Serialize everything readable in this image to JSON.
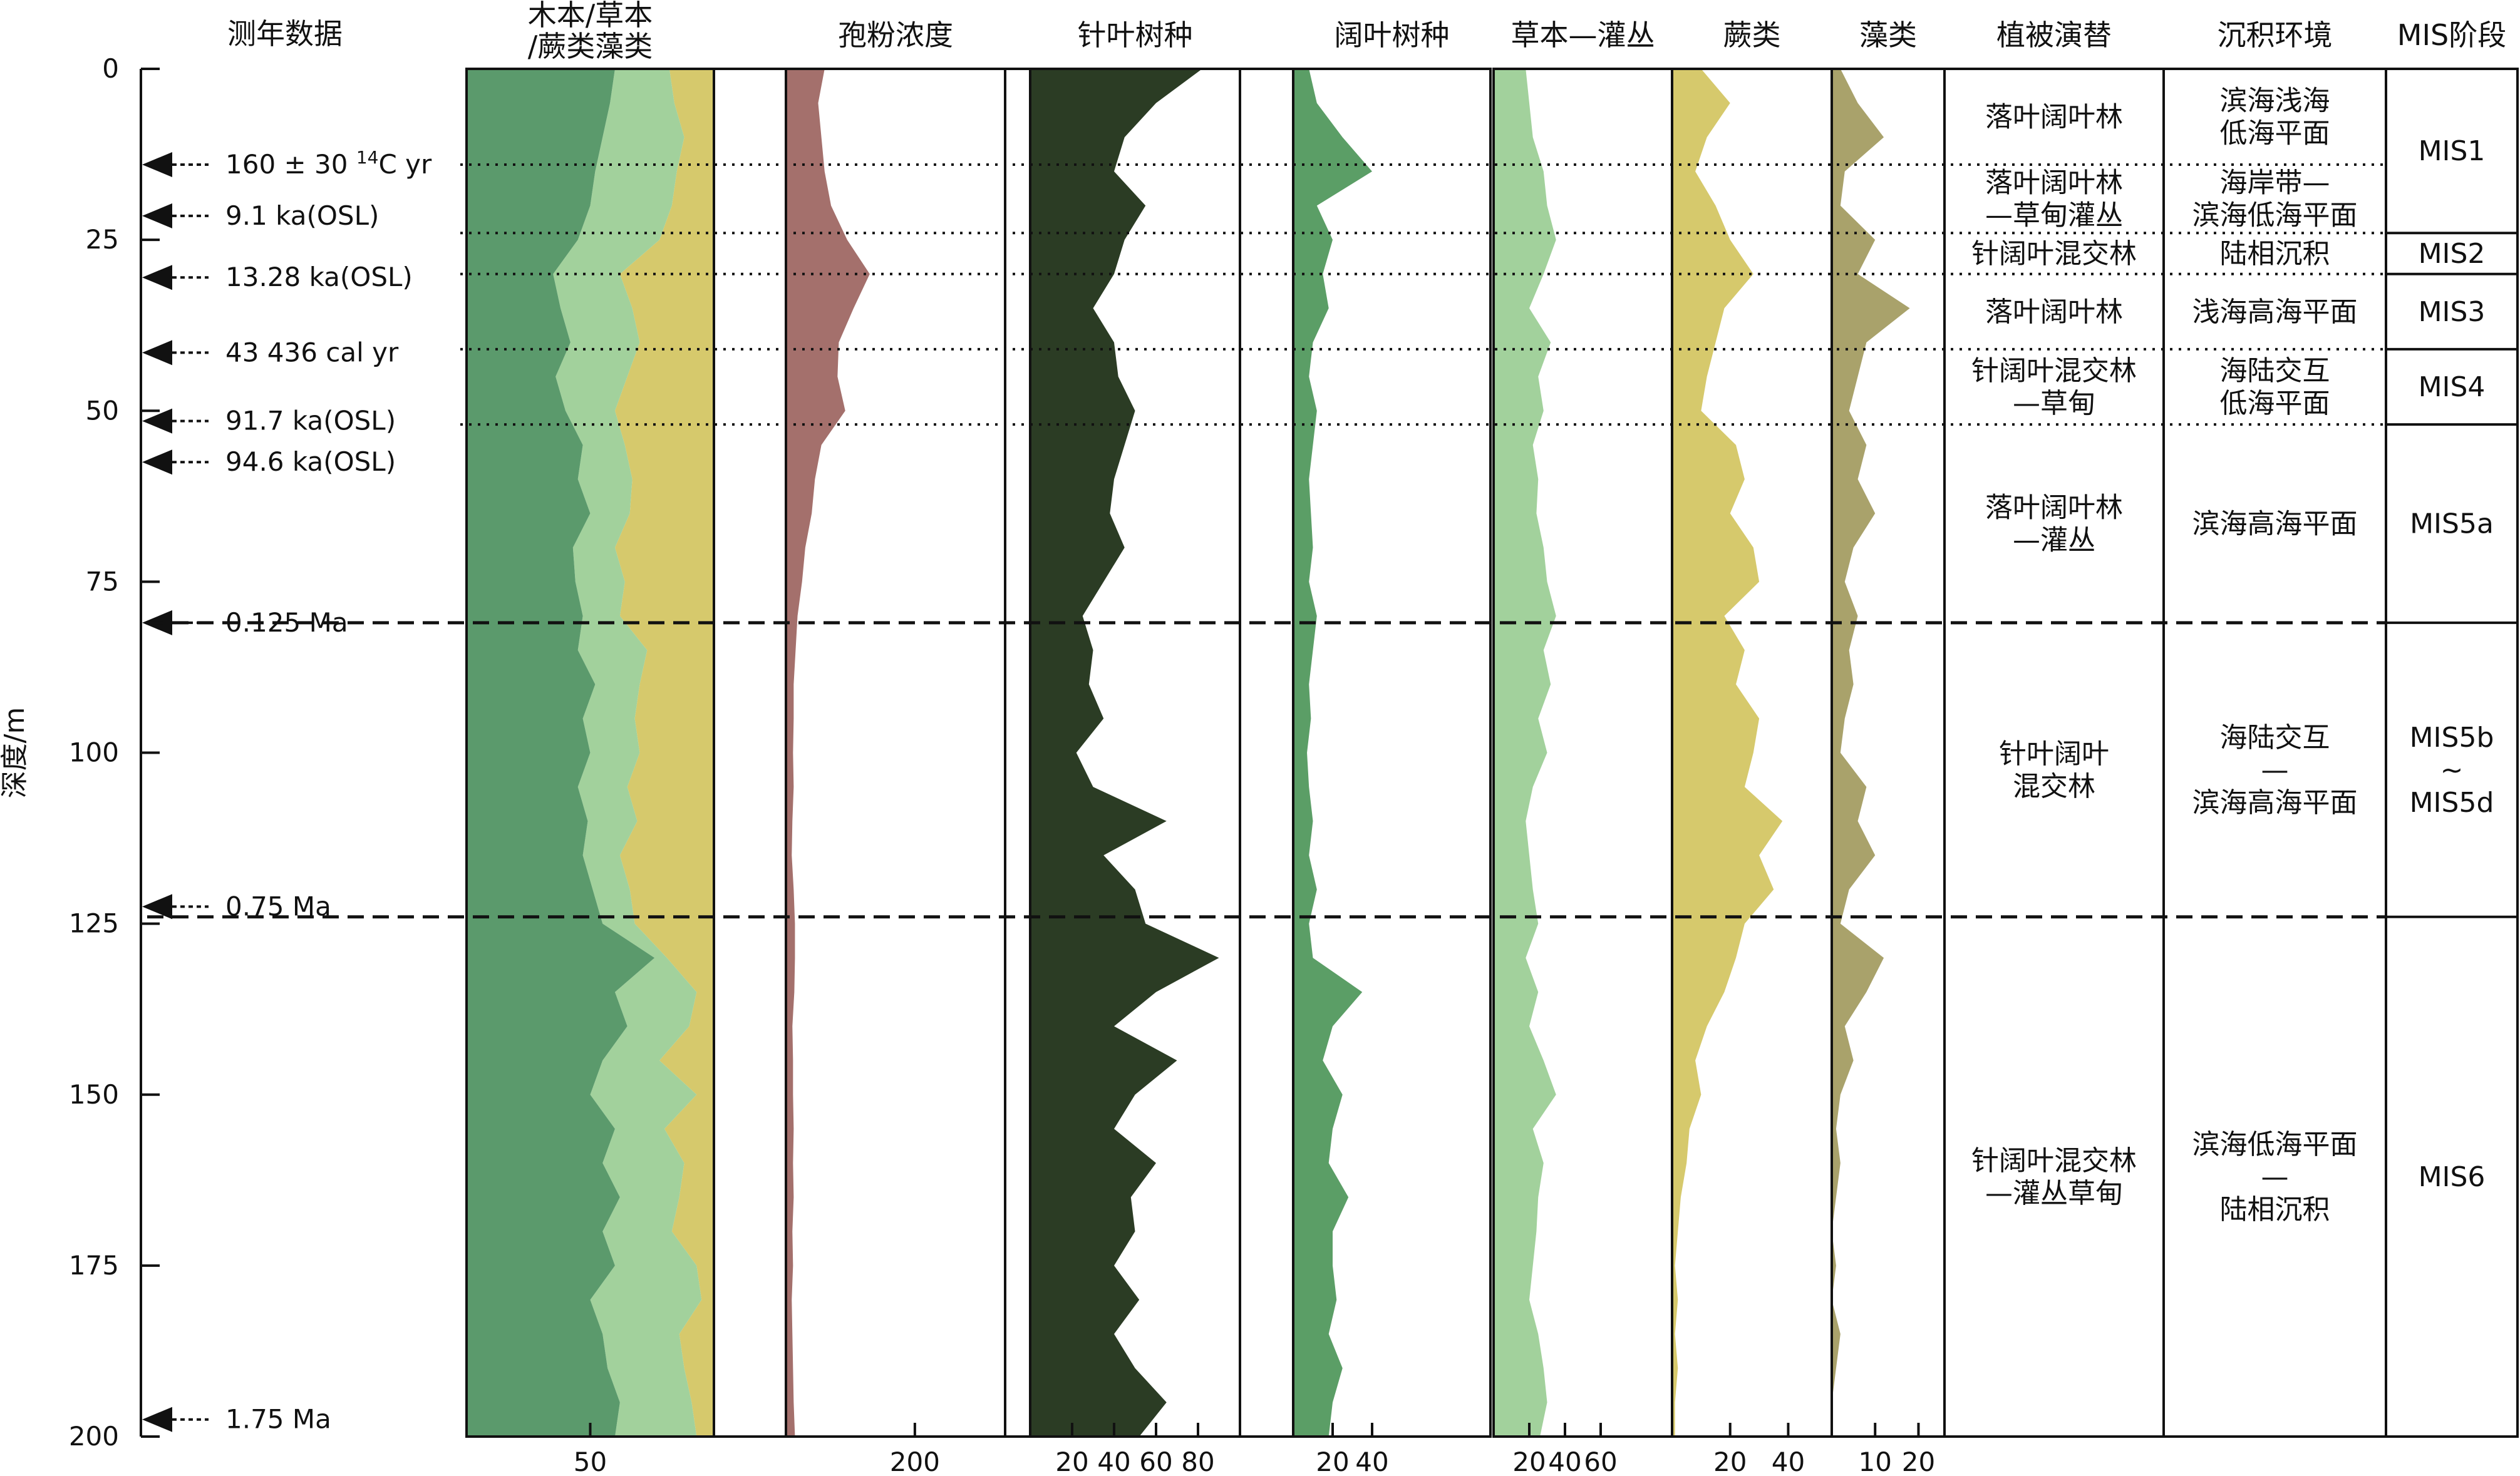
{
  "chart_data": {
    "type": "area",
    "depth_axis": {
      "label": "深度/m",
      "ticks": [
        "0",
        "25",
        "50",
        "75",
        "100",
        "125",
        "150",
        "175",
        "200"
      ],
      "range": [
        0,
        200
      ]
    },
    "dating": {
      "header": "测年数据",
      "items": [
        {
          "depth": 14,
          "label": "160 ± 30 ",
          "sup": "14",
          "suffix": "C yr"
        },
        {
          "depth": 21.5,
          "label": "9.1 ka(OSL)"
        },
        {
          "depth": 30.5,
          "label": "13.28 ka(OSL)"
        },
        {
          "depth": 41.5,
          "label": "43 436 cal yr"
        },
        {
          "depth": 51.5,
          "label": "91.7 ka(OSL)"
        },
        {
          "depth": 57.5,
          "label": "94.6 ka(OSL)"
        },
        {
          "depth": 81,
          "label": "0.125 Ma"
        },
        {
          "depth": 122.5,
          "label": "0.75 Ma"
        },
        {
          "depth": 197.5,
          "label": "1.75 Ma"
        }
      ]
    },
    "boundaries": {
      "dotted": [
        14,
        24,
        30,
        41,
        52
      ],
      "dashed": [
        81,
        124
      ]
    },
    "columns": [
      {
        "key": "composition",
        "header": "木本/草本\n/蕨类藻类",
        "ticks": [
          {
            "value": 50,
            "label": "50"
          }
        ],
        "xmax": 100
      },
      {
        "key": "pollen",
        "header": "孢粉浓度",
        "ticks": [
          {
            "value": 200,
            "label": "200"
          }
        ],
        "xmax": 340,
        "color": "#a4706c"
      },
      {
        "key": "conifer",
        "header": "针叶树种",
        "ticks": [
          {
            "value": 20,
            "label": "20"
          },
          {
            "value": 40,
            "label": "40"
          },
          {
            "value": 60,
            "label": "60"
          },
          {
            "value": 80,
            "label": "80"
          }
        ],
        "xmax": 100,
        "color": "#2b3c24"
      },
      {
        "key": "broadleaf",
        "header": "阔叶树种",
        "ticks": [
          {
            "value": 20,
            "label": "20"
          },
          {
            "value": 40,
            "label": "40"
          }
        ],
        "xmax": 100,
        "color": "#5b9e66"
      },
      {
        "key": "herb",
        "header": "草本—灌丛",
        "ticks": [
          {
            "value": 20,
            "label": "20"
          },
          {
            "value": 40,
            "label": "40"
          },
          {
            "value": 60,
            "label": "60"
          }
        ],
        "xmax": 100,
        "color": "#a2d19c"
      },
      {
        "key": "fern",
        "header": "蕨类",
        "ticks": [
          {
            "value": 20,
            "label": "20"
          },
          {
            "value": 40,
            "label": "40"
          }
        ],
        "xmax": 55,
        "color": "#d6c96c"
      },
      {
        "key": "algae",
        "header": "藻类",
        "ticks": [
          {
            "value": 10,
            "label": "10"
          },
          {
            "value": 20,
            "label": "20"
          }
        ],
        "xmax": 26,
        "color": "#a9a26b"
      }
    ],
    "composition_bands": [
      {
        "name": "木本",
        "color": "#5b9a6c"
      },
      {
        "name": "草本",
        "color": "#a2d19c"
      },
      {
        "name": "蕨类藻类",
        "color": "#d6c96c"
      }
    ],
    "series": {
      "depths": [
        0,
        5,
        10,
        15,
        20,
        25,
        30,
        35,
        40,
        45,
        50,
        55,
        60,
        65,
        70,
        75,
        80,
        85,
        90,
        95,
        100,
        105,
        110,
        115,
        120,
        125,
        130,
        135,
        140,
        145,
        150,
        155,
        160,
        165,
        170,
        175,
        180,
        185,
        190,
        195,
        200
      ],
      "woody": [
        60,
        58,
        55,
        52,
        50,
        45,
        35,
        38,
        42,
        36,
        40,
        47,
        45,
        50,
        43,
        44,
        47,
        45,
        52,
        47,
        50,
        45,
        49,
        47,
        51,
        55,
        76,
        60,
        65,
        55,
        50,
        60,
        55,
        62,
        55,
        60,
        50,
        55,
        57,
        62,
        60
      ],
      "woody_herb": [
        82,
        84,
        88,
        85,
        83,
        78,
        62,
        67,
        70,
        65,
        60,
        64,
        67,
        66,
        60,
        64,
        62,
        73,
        70,
        68,
        70,
        65,
        69,
        62,
        66,
        68,
        81,
        93,
        90,
        78,
        93,
        80,
        88,
        86,
        83,
        93,
        95,
        86,
        88,
        91,
        93
      ],
      "pollen": [
        60,
        50,
        55,
        60,
        70,
        95,
        130,
        105,
        82,
        80,
        92,
        55,
        45,
        40,
        30,
        25,
        18,
        15,
        12,
        12,
        11,
        12,
        10,
        9,
        12,
        14,
        14,
        13,
        10,
        11,
        11,
        12,
        11,
        12,
        10,
        11,
        9,
        10,
        11,
        12,
        14
      ],
      "conifer": [
        82,
        60,
        45,
        40,
        55,
        45,
        40,
        30,
        40,
        42,
        50,
        45,
        40,
        38,
        45,
        35,
        25,
        30,
        28,
        35,
        22,
        30,
        65,
        35,
        50,
        55,
        90,
        60,
        40,
        70,
        50,
        40,
        60,
        48,
        50,
        40,
        52,
        40,
        50,
        65,
        52
      ],
      "broadleaf": [
        8,
        12,
        25,
        40,
        12,
        20,
        15,
        18,
        10,
        8,
        12,
        10,
        8,
        9,
        10,
        8,
        12,
        10,
        8,
        9,
        7,
        8,
        10,
        8,
        12,
        8,
        10,
        35,
        20,
        15,
        25,
        20,
        18,
        28,
        20,
        20,
        22,
        18,
        25,
        20,
        18
      ],
      "herb": [
        18,
        20,
        22,
        28,
        30,
        35,
        28,
        20,
        32,
        25,
        28,
        22,
        25,
        24,
        28,
        30,
        35,
        28,
        32,
        25,
        30,
        22,
        18,
        20,
        22,
        25,
        18,
        25,
        20,
        28,
        35,
        22,
        28,
        25,
        24,
        22,
        20,
        25,
        28,
        30,
        26
      ],
      "fern": [
        10,
        20,
        12,
        8,
        15,
        20,
        28,
        18,
        15,
        12,
        10,
        22,
        25,
        20,
        28,
        30,
        18,
        25,
        22,
        30,
        28,
        25,
        38,
        30,
        35,
        25,
        22,
        18,
        12,
        8,
        10,
        6,
        5,
        3,
        2,
        1,
        2,
        1,
        2,
        1,
        1
      ],
      "algae": [
        2,
        6,
        12,
        3,
        2,
        10,
        6,
        18,
        8,
        6,
        4,
        8,
        6,
        10,
        5,
        3,
        6,
        4,
        5,
        3,
        2,
        8,
        6,
        10,
        4,
        2,
        12,
        8,
        3,
        5,
        2,
        1,
        2,
        1,
        0,
        1,
        0,
        2,
        1,
        0,
        0
      ]
    },
    "veg_header": "植被演替",
    "env_header": "沉积环境",
    "mis_header": "MIS阶段",
    "zones": [
      {
        "from": 0,
        "to": 14,
        "veg": [
          "落叶阔叶林"
        ],
        "env": [
          "滨海浅海",
          "低海平面"
        ]
      },
      {
        "from": 14,
        "to": 24,
        "veg": [
          "落叶阔叶林",
          "—草甸灌丛"
        ],
        "env": [
          "海岸带—",
          "滨海低海平面"
        ]
      },
      {
        "from": 24,
        "to": 30,
        "veg": [
          "针阔叶混交林"
        ],
        "env": [
          "陆相沉积"
        ]
      },
      {
        "from": 30,
        "to": 41,
        "veg": [
          "落叶阔叶林"
        ],
        "env": [
          "浅海高海平面"
        ]
      },
      {
        "from": 41,
        "to": 52,
        "veg": [
          "针阔叶混交林",
          "—草甸"
        ],
        "env": [
          "海陆交互",
          "低海平面"
        ]
      },
      {
        "from": 52,
        "to": 81,
        "veg": [
          "落叶阔叶林",
          "—灌丛"
        ],
        "env": [
          "滨海高海平面"
        ]
      },
      {
        "from": 81,
        "to": 124,
        "veg": [
          "针叶阔叶",
          "混交林"
        ],
        "env": [
          "海陆交互",
          "—",
          "滨海高海平面"
        ]
      },
      {
        "from": 124,
        "to": 200,
        "veg": [
          "针阔叶混交林",
          "—灌丛草甸"
        ],
        "env": [
          "滨海低海平面",
          "—",
          "陆相沉积"
        ]
      }
    ],
    "mis": [
      {
        "from": 0,
        "to": 24,
        "label": [
          "MIS1"
        ]
      },
      {
        "from": 24,
        "to": 30,
        "label": [
          "MIS2"
        ]
      },
      {
        "from": 30,
        "to": 41,
        "label": [
          "MIS3"
        ]
      },
      {
        "from": 41,
        "to": 52,
        "label": [
          "MIS4"
        ]
      },
      {
        "from": 52,
        "to": 81,
        "label": [
          "MIS5a"
        ]
      },
      {
        "from": 81,
        "to": 124,
        "label": [
          "MIS5b",
          "~",
          "MIS5d"
        ]
      },
      {
        "from": 124,
        "to": 200,
        "label": [
          "MIS6"
        ]
      }
    ]
  }
}
